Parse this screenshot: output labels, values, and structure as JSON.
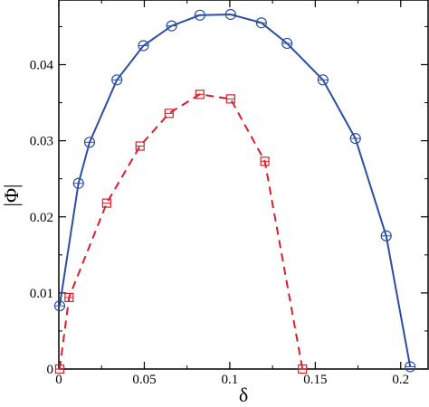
{
  "chart_data": {
    "type": "line",
    "xlabel": "δ",
    "ylabel": "|Φ|",
    "xlim": [
      0,
      0.216
    ],
    "ylim": [
      0,
      0.0485
    ],
    "xticks": [
      0,
      0.05,
      0.1,
      0.15,
      0.2
    ],
    "xtick_labels": [
      "0",
      "0.05",
      "0.1",
      "0.15",
      "0.2"
    ],
    "yticks": [
      0,
      0.01,
      0.02,
      0.03,
      0.04
    ],
    "ytick_labels": [
      "0",
      "0.01",
      "0.02",
      "0.03",
      "0.04"
    ],
    "grid": false,
    "series": [
      {
        "marker": "circle",
        "color": "#2b4ea2",
        "line": "solid",
        "x": [
          0.0005,
          0.0115,
          0.018,
          0.034,
          0.0495,
          0.066,
          0.0825,
          0.1005,
          0.1185,
          0.1335,
          0.1545,
          0.1735,
          0.1915,
          0.2055
        ],
        "y": [
          0.0083,
          0.0244,
          0.0298,
          0.038,
          0.0425,
          0.0451,
          0.0465,
          0.0466,
          0.0455,
          0.0428,
          0.038,
          0.0303,
          0.0175,
          0.0003
        ]
      },
      {
        "marker": "square",
        "color": "#d8202a",
        "line": "dashed",
        "x": [
          0.0005,
          0.006,
          0.028,
          0.0475,
          0.0645,
          0.0825,
          0.1005,
          0.1205,
          0.1425
        ],
        "y": [
          0.0,
          0.0094,
          0.0218,
          0.0293,
          0.0336,
          0.0361,
          0.0355,
          0.0273,
          0.0
        ]
      }
    ]
  }
}
